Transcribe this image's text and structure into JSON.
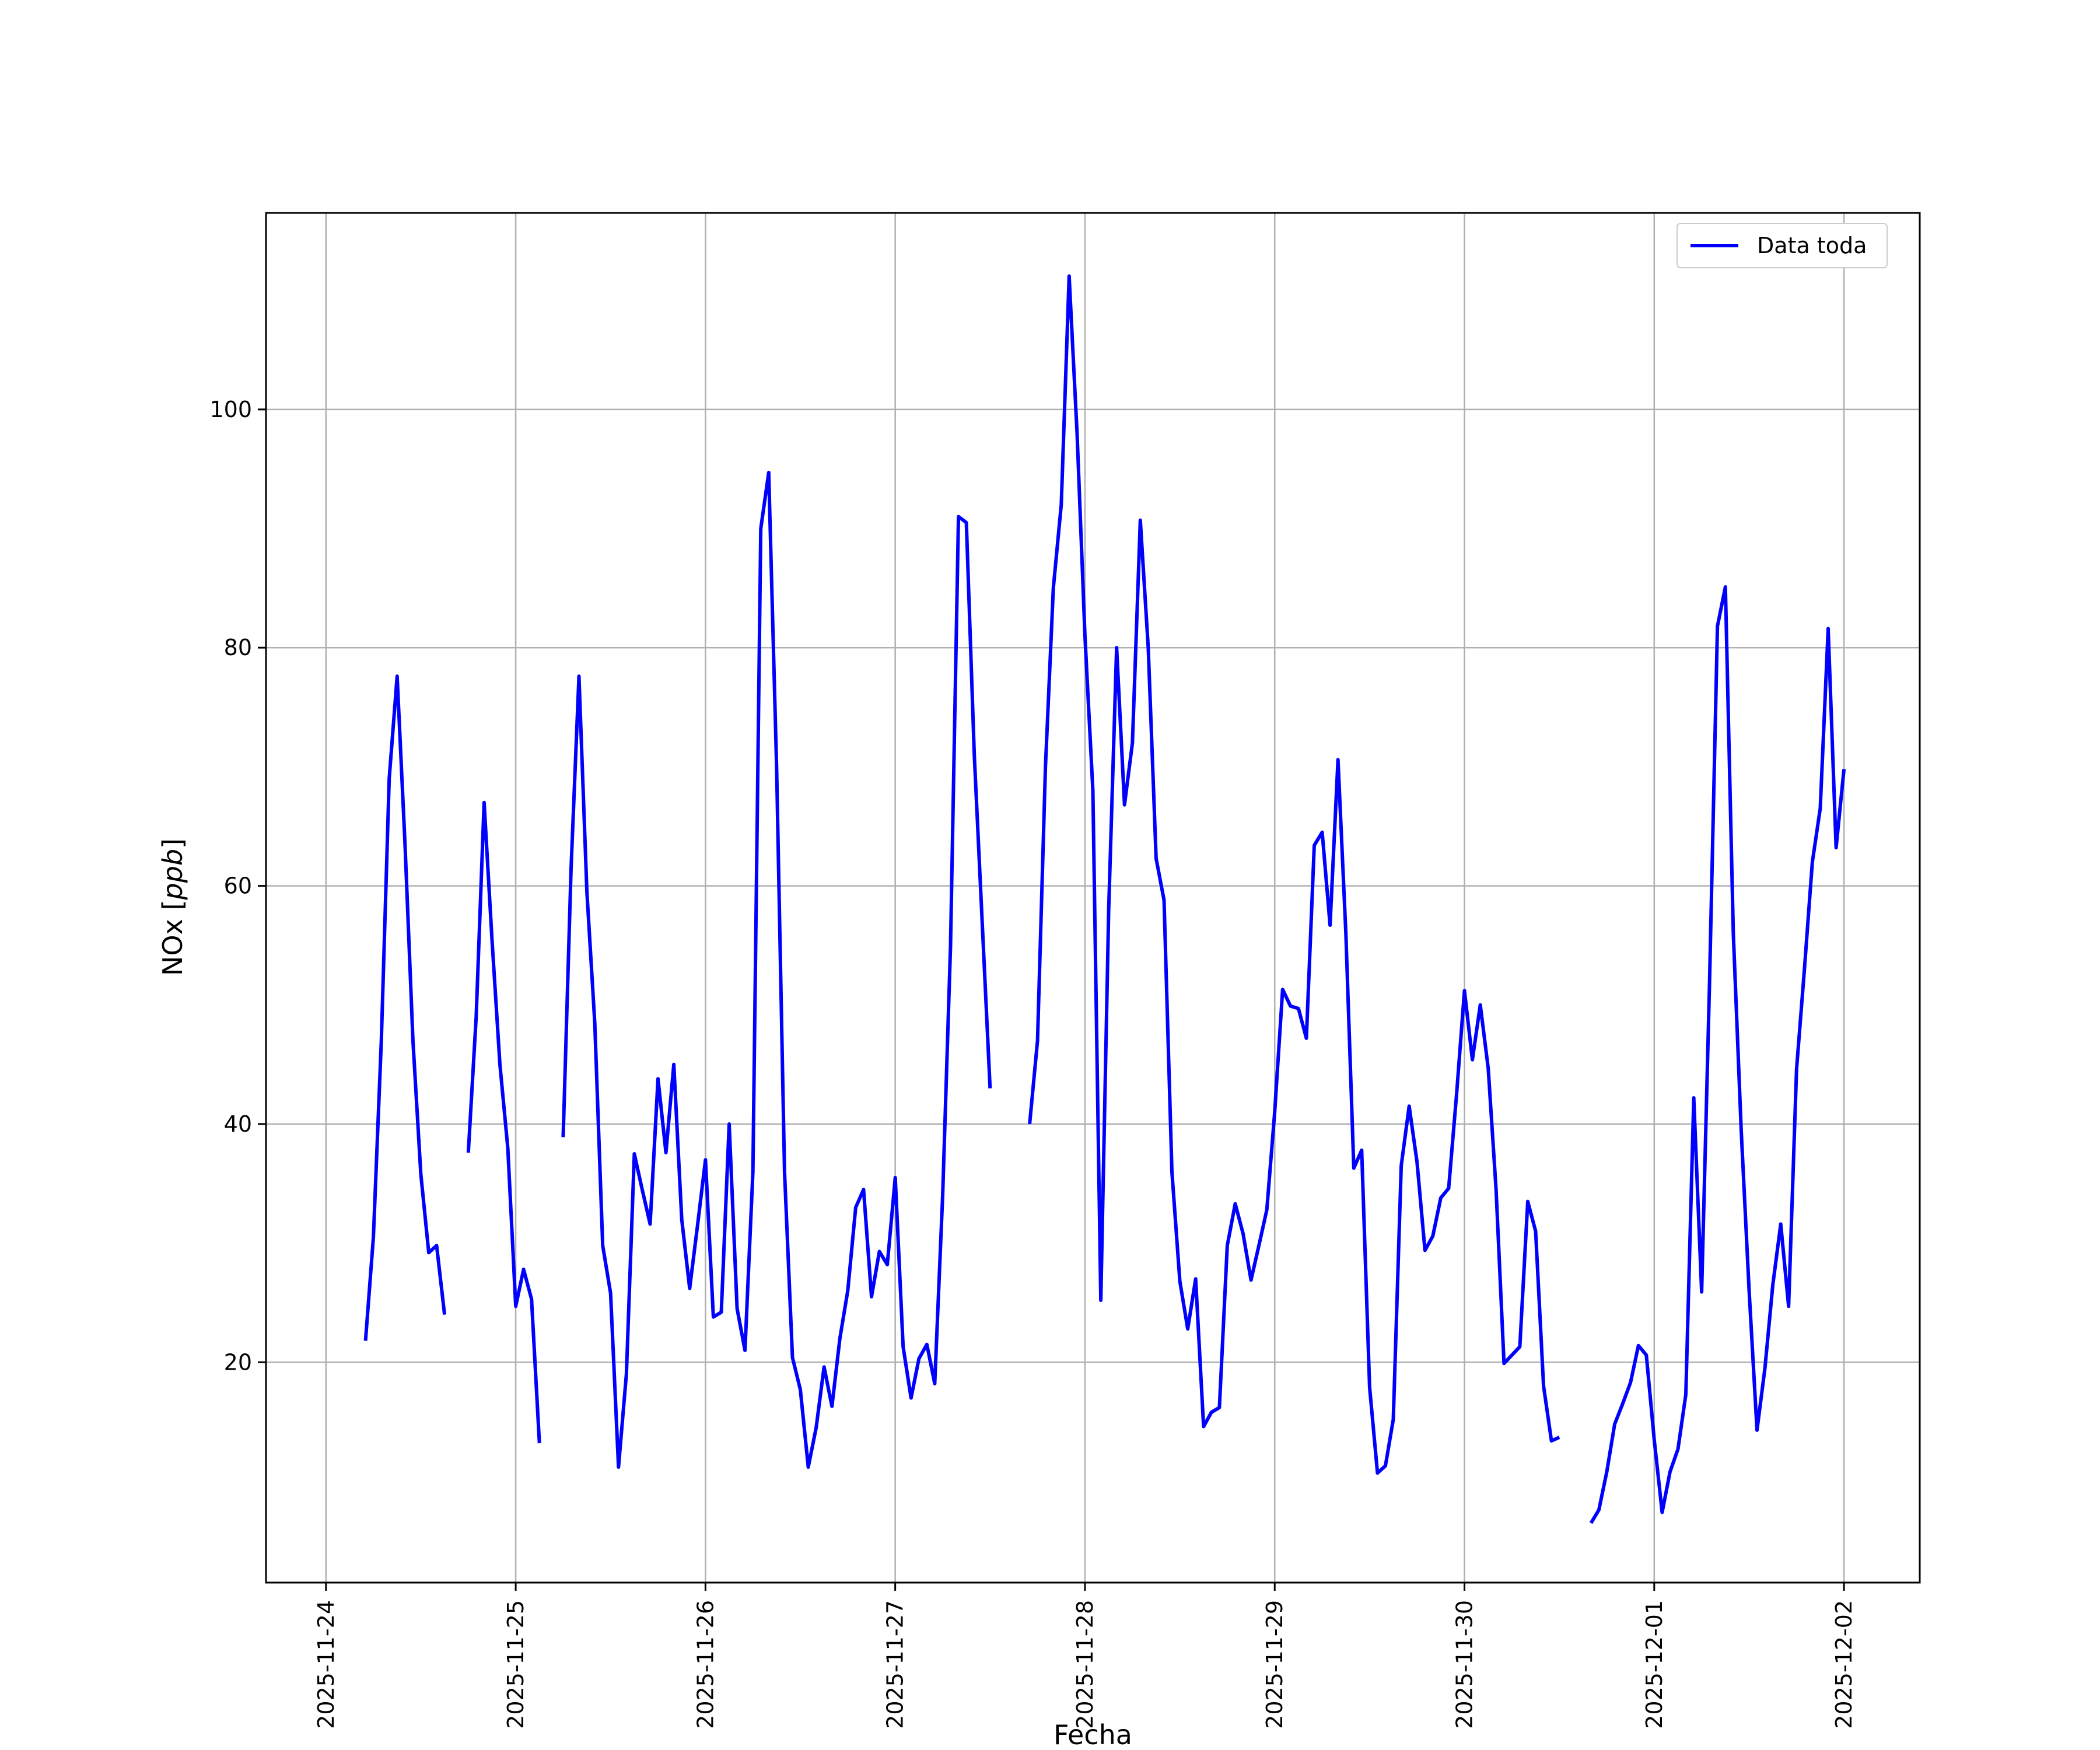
{
  "chart_data": {
    "type": "line",
    "title": "",
    "xlabel": "Fecha",
    "ylabel": "NOx [ppb]",
    "ylabel_main": "NOx [",
    "ylabel_unit": "ppb",
    "ylabel_close": "]",
    "xlim": [
      "2025-11-23T16:25",
      "2025-12-02T09:35"
    ],
    "ylim": [
      1.5,
      116.5
    ],
    "x_ticks": [
      "2025-11-24",
      "2025-11-25",
      "2025-11-26",
      "2025-11-27",
      "2025-11-28",
      "2025-11-29",
      "2025-11-30",
      "2025-12-01",
      "2025-12-02"
    ],
    "y_ticks": [
      20,
      40,
      60,
      80,
      100
    ],
    "grid": true,
    "legend_position": "upper right",
    "colors": {
      "line": "#0000ff",
      "grid": "#b0b0b0",
      "frame": "#000000"
    },
    "series": [
      {
        "name": "Data toda",
        "color": "#0000ff",
        "segments": [
          [
            [
              "2025-11-24T05:00",
              21.8
            ],
            [
              "2025-11-24T06:00",
              30.5
            ],
            [
              "2025-11-24T07:00",
              47.0
            ],
            [
              "2025-11-24T08:00",
              69.0
            ],
            [
              "2025-11-24T09:00",
              77.6
            ],
            [
              "2025-11-24T10:00",
              63.5
            ],
            [
              "2025-11-24T11:00",
              47.0
            ],
            [
              "2025-11-24T12:00",
              35.8
            ],
            [
              "2025-11-24T13:00",
              29.2
            ],
            [
              "2025-11-24T14:00",
              29.8
            ],
            [
              "2025-11-24T15:00",
              24.0
            ]
          ],
          [
            [
              "2025-11-24T18:00",
              37.6
            ],
            [
              "2025-11-24T19:00",
              49.0
            ],
            [
              "2025-11-24T20:00",
              67.0
            ],
            [
              "2025-11-24T21:00",
              55.5
            ],
            [
              "2025-11-24T22:00",
              45.0
            ],
            [
              "2025-11-24T23:00",
              38.0
            ],
            [
              "2025-11-25T00:00",
              24.7
            ],
            [
              "2025-11-25T01:00",
              27.8
            ],
            [
              "2025-11-25T02:00",
              25.3
            ],
            [
              "2025-11-25T03:00",
              13.2
            ]
          ],
          [
            [
              "2025-11-25T06:00",
              38.9
            ],
            [
              "2025-11-25T07:00",
              61.5
            ],
            [
              "2025-11-25T08:00",
              77.6
            ],
            [
              "2025-11-25T09:00",
              59.5
            ],
            [
              "2025-11-25T10:00",
              48.5
            ],
            [
              "2025-11-25T11:00",
              29.8
            ],
            [
              "2025-11-25T12:00",
              25.8
            ],
            [
              "2025-11-25T13:00",
              11.2
            ],
            [
              "2025-11-25T14:00",
              19.0
            ],
            [
              "2025-11-25T15:00",
              37.5
            ],
            [
              "2025-11-25T16:00",
              34.5
            ],
            [
              "2025-11-25T17:00",
              31.6
            ],
            [
              "2025-11-25T18:00",
              43.8
            ],
            [
              "2025-11-25T19:00",
              37.6
            ],
            [
              "2025-11-25T20:00",
              45.0
            ],
            [
              "2025-11-25T21:00",
              32.0
            ],
            [
              "2025-11-25T22:00",
              26.2
            ],
            [
              "2025-11-25T23:00",
              31.5
            ],
            [
              "2025-11-26T00:00",
              37.0
            ],
            [
              "2025-11-26T01:00",
              23.8
            ],
            [
              "2025-11-26T02:00",
              24.2
            ],
            [
              "2025-11-26T03:00",
              40.0
            ],
            [
              "2025-11-26T04:00",
              24.5
            ],
            [
              "2025-11-26T05:00",
              21.0
            ],
            [
              "2025-11-26T06:00",
              36.0
            ],
            [
              "2025-11-26T07:00",
              90.0
            ],
            [
              "2025-11-26T08:00",
              94.7
            ],
            [
              "2025-11-26T09:00",
              70.0
            ],
            [
              "2025-11-26T10:00",
              36.0
            ],
            [
              "2025-11-26T11:00",
              20.4
            ],
            [
              "2025-11-26T12:00",
              17.7
            ],
            [
              "2025-11-26T13:00",
              11.2
            ],
            [
              "2025-11-26T14:00",
              14.5
            ],
            [
              "2025-11-26T15:00",
              19.6
            ],
            [
              "2025-11-26T16:00",
              16.3
            ],
            [
              "2025-11-26T17:00",
              22.0
            ],
            [
              "2025-11-26T18:00",
              26.0
            ],
            [
              "2025-11-26T19:00",
              33.0
            ],
            [
              "2025-11-26T20:00",
              34.5
            ],
            [
              "2025-11-26T21:00",
              25.5
            ],
            [
              "2025-11-26T22:00",
              29.3
            ],
            [
              "2025-11-26T23:00",
              28.2
            ],
            [
              "2025-11-27T00:00",
              35.5
            ],
            [
              "2025-11-27T01:00",
              21.3
            ],
            [
              "2025-11-27T02:00",
              17.0
            ],
            [
              "2025-11-27T03:00",
              20.3
            ],
            [
              "2025-11-27T04:00",
              21.5
            ],
            [
              "2025-11-27T05:00",
              18.2
            ],
            [
              "2025-11-27T06:00",
              34.0
            ],
            [
              "2025-11-27T07:00",
              55.0
            ],
            [
              "2025-11-27T08:00",
              91.0
            ],
            [
              "2025-11-27T09:00",
              90.5
            ],
            [
              "2025-11-27T10:00",
              71.0
            ],
            [
              "2025-11-27T11:00",
              57.0
            ],
            [
              "2025-11-27T12:00",
              43.0
            ]
          ],
          [
            [
              "2025-11-27T17:00",
              40.0
            ],
            [
              "2025-11-27T18:00",
              47.0
            ],
            [
              "2025-11-27T19:00",
              70.0
            ],
            [
              "2025-11-27T20:00",
              85.0
            ],
            [
              "2025-11-27T21:00",
              92.0
            ],
            [
              "2025-11-27T22:00",
              111.2
            ],
            [
              "2025-11-27T23:00",
              98.0
            ],
            [
              "2025-11-28T00:00",
              81.0
            ],
            [
              "2025-11-28T01:00",
              68.0
            ],
            [
              "2025-11-28T02:00",
              25.2
            ],
            [
              "2025-11-28T03:00",
              58.0
            ],
            [
              "2025-11-28T04:00",
              80.0
            ],
            [
              "2025-11-28T05:00",
              66.8
            ],
            [
              "2025-11-28T06:00",
              72.0
            ],
            [
              "2025-11-28T07:00",
              90.7
            ],
            [
              "2025-11-28T08:00",
              80.0
            ],
            [
              "2025-11-28T09:00",
              62.3
            ],
            [
              "2025-11-28T10:00",
              58.8
            ],
            [
              "2025-11-28T11:00",
              36.0
            ],
            [
              "2025-11-28T12:00",
              26.8
            ],
            [
              "2025-11-28T13:00",
              22.8
            ],
            [
              "2025-11-28T14:00",
              27.0
            ],
            [
              "2025-11-28T15:00",
              14.6
            ],
            [
              "2025-11-28T16:00",
              15.8
            ],
            [
              "2025-11-28T17:00",
              16.2
            ],
            [
              "2025-11-28T18:00",
              29.8
            ],
            [
              "2025-11-28T19:00",
              33.3
            ],
            [
              "2025-11-28T20:00",
              30.8
            ],
            [
              "2025-11-28T21:00",
              26.9
            ],
            [
              "2025-11-28T22:00",
              29.8
            ],
            [
              "2025-11-28T23:00",
              32.8
            ],
            [
              "2025-11-29T00:00",
              41.0
            ],
            [
              "2025-11-29T01:00",
              51.3
            ],
            [
              "2025-11-29T02:00",
              49.9
            ],
            [
              "2025-11-29T03:00",
              49.7
            ],
            [
              "2025-11-29T04:00",
              47.2
            ],
            [
              "2025-11-29T05:00",
              63.4
            ],
            [
              "2025-11-29T06:00",
              64.5
            ],
            [
              "2025-11-29T07:00",
              56.7
            ],
            [
              "2025-11-29T08:00",
              70.6
            ],
            [
              "2025-11-29T09:00",
              56.0
            ],
            [
              "2025-11-29T10:00",
              36.3
            ],
            [
              "2025-11-29T11:00",
              37.8
            ],
            [
              "2025-11-29T12:00",
              17.9
            ],
            [
              "2025-11-29T13:00",
              10.7
            ],
            [
              "2025-11-29T14:00",
              11.3
            ],
            [
              "2025-11-29T15:00",
              15.2
            ],
            [
              "2025-11-29T16:00",
              36.5
            ],
            [
              "2025-11-29T17:00",
              41.5
            ],
            [
              "2025-11-29T18:00",
              36.8
            ],
            [
              "2025-11-29T19:00",
              29.4
            ],
            [
              "2025-11-29T20:00",
              30.6
            ],
            [
              "2025-11-29T21:00",
              33.8
            ],
            [
              "2025-11-29T22:00",
              34.6
            ],
            [
              "2025-11-29T23:00",
              42.5
            ],
            [
              "2025-11-30T00:00",
              51.2
            ],
            [
              "2025-11-30T01:00",
              45.4
            ],
            [
              "2025-11-30T02:00",
              50.0
            ],
            [
              "2025-11-30T03:00",
              44.7
            ],
            [
              "2025-11-30T04:00",
              34.5
            ],
            [
              "2025-11-30T05:00",
              19.9
            ],
            [
              "2025-11-30T06:00",
              20.6
            ],
            [
              "2025-11-30T07:00",
              21.3
            ],
            [
              "2025-11-30T08:00",
              33.5
            ],
            [
              "2025-11-30T09:00",
              31.0
            ],
            [
              "2025-11-30T10:00",
              18.0
            ],
            [
              "2025-11-30T11:00",
              13.4
            ],
            [
              "2025-11-30T12:00",
              13.7
            ]
          ],
          [
            [
              "2025-11-30T16:00",
              6.5
            ],
            [
              "2025-11-30T17:00",
              7.6
            ],
            [
              "2025-11-30T18:00",
              10.8
            ],
            [
              "2025-11-30T19:00",
              14.8
            ],
            [
              "2025-11-30T20:00",
              16.5
            ],
            [
              "2025-11-30T21:00",
              18.3
            ],
            [
              "2025-11-30T22:00",
              21.4
            ],
            [
              "2025-11-30T23:00",
              20.6
            ],
            [
              "2025-12-01T00:00",
              13.5
            ],
            [
              "2025-12-01T01:00",
              7.4
            ],
            [
              "2025-12-01T02:00",
              10.8
            ],
            [
              "2025-12-01T03:00",
              12.7
            ],
            [
              "2025-12-01T04:00",
              17.3
            ],
            [
              "2025-12-01T05:00",
              42.2
            ],
            [
              "2025-12-01T06:00",
              25.9
            ],
            [
              "2025-12-01T07:00",
              52.0
            ],
            [
              "2025-12-01T08:00",
              81.8
            ],
            [
              "2025-12-01T09:00",
              85.1
            ],
            [
              "2025-12-01T10:00",
              56.0
            ],
            [
              "2025-12-01T11:00",
              39.5
            ],
            [
              "2025-12-01T12:00",
              26.0
            ],
            [
              "2025-12-01T13:00",
              14.3
            ],
            [
              "2025-12-01T14:00",
              19.5
            ],
            [
              "2025-12-01T15:00",
              26.5
            ],
            [
              "2025-12-01T16:00",
              31.6
            ],
            [
              "2025-12-01T17:00",
              24.7
            ],
            [
              "2025-12-01T18:00",
              44.6
            ],
            [
              "2025-12-01T19:00",
              53.0
            ],
            [
              "2025-12-01T20:00",
              62.0
            ],
            [
              "2025-12-01T21:00",
              66.5
            ],
            [
              "2025-12-01T22:00",
              81.6
            ],
            [
              "2025-12-01T23:00",
              63.2
            ],
            [
              "2025-12-02T00:00",
              69.8
            ]
          ]
        ]
      }
    ]
  }
}
